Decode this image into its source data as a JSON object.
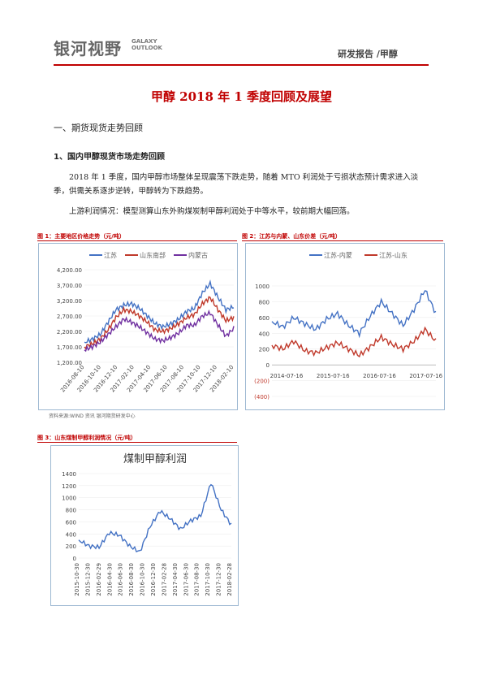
{
  "header": {
    "logo_cn": "银河视野",
    "logo_en": "GALAXY OUTLOOK",
    "report_tag": "研发报告  /甲醇"
  },
  "title": "甲醇 2018 年 1 季度回顾及展望",
  "section1": "一、期货现货走势回顾",
  "sub1": "1、国内甲醇现货市场走势回顾",
  "para1": "2018 年 1 季度，国内甲醇市场整体呈现震荡下跌走势，随着 MTO 利润处于亏损状态预计需求进入淡季，供需关系逐步逆转，甲醇转为下跌趋势。",
  "para2": "上游利润情况：模型测算山东外购煤炭制甲醇利润处于中等水平，较前期大幅回落。",
  "source": "资料来源:WIND 资讯   银河期货研发中心",
  "colors": {
    "blue": "#4472c4",
    "red": "#c0392b",
    "purple": "#7030a0",
    "accent": "#c00000"
  },
  "figure1": {
    "caption": "图 1：主要地区价格走势（元/吨）",
    "chart_data": {
      "type": "line",
      "title": "",
      "legend": [
        "江苏",
        "山东南部",
        "内蒙古"
      ],
      "legend_position": "top",
      "ylim": [
        1200,
        4200
      ],
      "y_ticks": [
        "4,200.00",
        "3,700.00",
        "3,200.00",
        "2,700.00",
        "2,200.00",
        "1,700.00",
        "1,200.00"
      ],
      "x_ticks": [
        "2016-08-10",
        "2016-10-10",
        "2016-12-10",
        "2017-02-10",
        "2017-04-10",
        "2017-06-10",
        "2017-08-10",
        "2017-10-10",
        "2017-12-10",
        "2018-02-10"
      ],
      "x": [
        "2016-08",
        "2016-09",
        "2016-10",
        "2016-11",
        "2016-12",
        "2017-01",
        "2017-02",
        "2017-03",
        "2017-04",
        "2017-05",
        "2017-06",
        "2017-07",
        "2017-08",
        "2017-09",
        "2017-10",
        "2017-11",
        "2017-12",
        "2018-01",
        "2018-02",
        "2018-03"
      ],
      "series": [
        {
          "name": "江苏",
          "values": [
            1850,
            1950,
            2100,
            2500,
            2900,
            3050,
            3100,
            2950,
            2700,
            2450,
            2350,
            2450,
            2600,
            2850,
            2950,
            3450,
            3750,
            3300,
            2900,
            3000
          ]
        },
        {
          "name": "山东南部",
          "values": [
            1700,
            1800,
            1950,
            2250,
            2650,
            2900,
            2850,
            2700,
            2500,
            2250,
            2200,
            2300,
            2450,
            2650,
            2750,
            3100,
            3300,
            2900,
            2550,
            2650
          ]
        },
        {
          "name": "内蒙古",
          "values": [
            1600,
            1700,
            1850,
            2100,
            2350,
            2600,
            2500,
            2350,
            2150,
            1950,
            1900,
            2000,
            2150,
            2400,
            2400,
            2700,
            2800,
            2400,
            2050,
            2300
          ]
        }
      ]
    }
  },
  "figure2": {
    "caption": "图 2：江苏与内蒙、山东价差（元/吨）",
    "chart_data": {
      "type": "line",
      "title": "",
      "legend": [
        "江苏-内蒙",
        "江苏-山东"
      ],
      "legend_position": "top",
      "ylim": [
        -400,
        1000
      ],
      "y_ticks": [
        "1000",
        "800",
        "600",
        "400",
        "200",
        "0",
        "(200)",
        "(400)"
      ],
      "x_ticks": [
        "2014-07-16",
        "2015-07-16",
        "2016-07-16",
        "2017-07-16"
      ],
      "x": [
        "2014-07",
        "2014-10",
        "2015-01",
        "2015-04",
        "2015-07",
        "2015-10",
        "2016-01",
        "2016-04",
        "2016-07",
        "2016-10",
        "2017-01",
        "2017-04",
        "2017-07",
        "2017-10",
        "2018-01",
        "2018-03"
      ],
      "series": [
        {
          "name": "江苏-内蒙",
          "values": [
            550,
            480,
            600,
            520,
            450,
            580,
            650,
            500,
            400,
            620,
            800,
            650,
            500,
            700,
            950,
            650
          ]
        },
        {
          "name": "江苏-山东",
          "values": [
            250,
            200,
            300,
            180,
            150,
            220,
            280,
            200,
            120,
            230,
            350,
            260,
            200,
            300,
            450,
            300
          ]
        }
      ]
    }
  },
  "figure3": {
    "caption": "图 3：山东煤制甲醇利润情况（元/吨）",
    "chart_data": {
      "type": "line",
      "title": "煤制甲醇利润",
      "ylim": [
        0,
        1400
      ],
      "y_ticks": [
        "1400",
        "1200",
        "1000",
        "800",
        "600",
        "400",
        "200",
        "0"
      ],
      "x_ticks": [
        "2015-10-30",
        "2015-12-30",
        "2016-02-29",
        "2016-04-30",
        "2016-06-30",
        "2016-08-30",
        "2016-10-30",
        "2016-12-30",
        "2017-02-28",
        "2017-04-30",
        "2017-06-30",
        "2017-08-30",
        "2017-10-30",
        "2017-12-30",
        "2018-02-28"
      ],
      "x": [
        "2015-10",
        "2015-12",
        "2016-02",
        "2016-04",
        "2016-06",
        "2016-08",
        "2016-10",
        "2016-12",
        "2017-02",
        "2017-04",
        "2017-06",
        "2017-08",
        "2017-10",
        "2017-12",
        "2018-02",
        "2018-03"
      ],
      "series": [
        {
          "name": "",
          "values": [
            300,
            200,
            180,
            420,
            380,
            200,
            100,
            520,
            780,
            650,
            480,
            620,
            700,
            1250,
            800,
            550
          ]
        }
      ]
    }
  }
}
